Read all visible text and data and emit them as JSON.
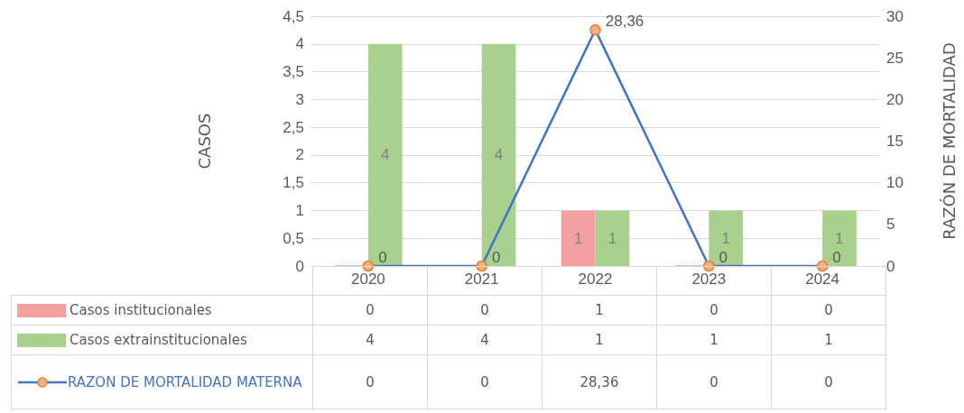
{
  "chart_data": {
    "type": "bar",
    "ylabel": "CASOS",
    "y2label": "RAZÓN DE MORTALIDAD",
    "categories": [
      "2020",
      "2021",
      "2022",
      "2023",
      "2024"
    ],
    "series": [
      {
        "name": "Casos institucionales",
        "color": "#f4a0a0",
        "values": [
          0,
          0,
          1,
          0,
          0
        ],
        "value_labels": [
          "0",
          "0",
          "1",
          "0",
          "0"
        ]
      },
      {
        "name": "Casos extrainstitucionales",
        "color": "#a9d18e",
        "values": [
          4,
          4,
          1,
          1,
          1
        ],
        "value_labels": [
          "4",
          "4",
          "1",
          "1",
          "1"
        ]
      },
      {
        "name": "RAZON DE MORTALIDAD MATERNA",
        "type": "line",
        "axis": "y2",
        "color": "#4472c4",
        "values": [
          0,
          0,
          28.36,
          0,
          0
        ],
        "value_labels": [
          "0",
          "0",
          "28,36",
          "0",
          "0"
        ]
      }
    ],
    "ylim": [
      0,
      4.5
    ],
    "yticks": [
      0,
      {
        "value": 0.5,
        "label": "0,5"
      },
      1,
      {
        "value": 1.5,
        "label": "1,5"
      },
      2,
      {
        "value": 2.5,
        "label": "2,5"
      },
      3,
      {
        "value": 3.5,
        "label": "3,5"
      },
      4,
      {
        "value": 4.5,
        "label": "4,5"
      }
    ],
    "y2lim": [
      0,
      30
    ],
    "y2ticks": [
      0,
      5,
      10,
      15,
      20,
      25,
      30
    ],
    "grid": "y",
    "legend": "bottom left",
    "marker": "circle",
    "line_style": "solid"
  }
}
